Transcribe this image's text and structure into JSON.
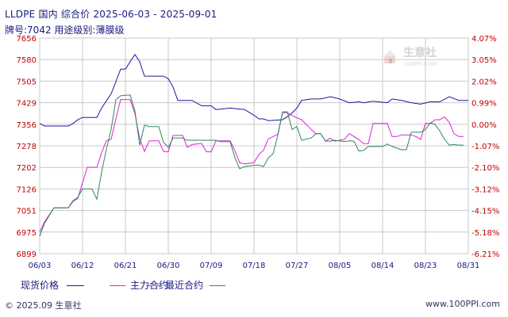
{
  "header": {
    "title": "LLDPE 国内 综合价 2025-06-03 - 2025-09-01",
    "subtitle": "牌号:7042 用途级别:薄膜级"
  },
  "watermark": {
    "brand": "生意社",
    "url": "100PPI.COM"
  },
  "legend": [
    {
      "label": "现货价格",
      "color": "#1a1aa0"
    },
    {
      "label": "主力合约",
      "color": "#e020d0"
    },
    {
      "label": "最近合约",
      "color": "#2a8a5a"
    }
  ],
  "footer": {
    "copyright": "© 2025.09 生意社",
    "url": "www.100PPI.com"
  },
  "colors": {
    "grid": "#c8c8c8",
    "axis_text_left": "#c00000",
    "axis_text_right": "#c00000",
    "axis_text_x": "#1a1a80",
    "baseline": "#c8c8c8"
  },
  "chart_data": {
    "type": "line",
    "x_labels": [
      "06/03",
      "06/12",
      "06/21",
      "06/30",
      "07/09",
      "07/18",
      "07/27",
      "08/05",
      "08/14",
      "08/23",
      "08/31"
    ],
    "y_ticks": [
      "7656",
      "7580",
      "7505",
      "7429",
      "7356",
      "7278",
      "7202",
      "7126",
      "7051",
      "6975",
      "6899"
    ],
    "y2_ticks": [
      "4.07%",
      "3.05%",
      "2.02%",
      "0.99%",
      "0.00%",
      "-1.07%",
      "-2.10%",
      "-3.12%",
      "-4.15%",
      "-5.18%",
      "-6.21%"
    ],
    "ylim": [
      6899,
      7656
    ],
    "xlim_days": [
      0,
      90
    ],
    "series": [
      {
        "name": "现货价格",
        "color": "#1a1aa0",
        "points": [
          [
            0,
            7356
          ],
          [
            1,
            7347
          ],
          [
            3,
            7347
          ],
          [
            6,
            7347
          ],
          [
            7,
            7356
          ],
          [
            8,
            7369
          ],
          [
            9,
            7377
          ],
          [
            12,
            7377
          ],
          [
            13,
            7410
          ],
          [
            15,
            7460
          ],
          [
            17,
            7547
          ],
          [
            18,
            7547
          ],
          [
            19,
            7573
          ],
          [
            20,
            7598
          ],
          [
            21,
            7573
          ],
          [
            22,
            7522
          ],
          [
            24,
            7522
          ],
          [
            26,
            7522
          ],
          [
            27,
            7513
          ],
          [
            28,
            7484
          ],
          [
            29,
            7437
          ],
          [
            32,
            7437
          ],
          [
            34,
            7418
          ],
          [
            36,
            7418
          ],
          [
            37,
            7405
          ],
          [
            40,
            7410
          ],
          [
            43,
            7405
          ],
          [
            45,
            7385
          ],
          [
            46,
            7372
          ],
          [
            47,
            7372
          ],
          [
            48,
            7366
          ],
          [
            51,
            7369
          ],
          [
            52,
            7380
          ],
          [
            53,
            7393
          ],
          [
            54,
            7410
          ],
          [
            55,
            7437
          ],
          [
            57,
            7442
          ],
          [
            59,
            7442
          ],
          [
            61,
            7450
          ],
          [
            63,
            7442
          ],
          [
            65,
            7429
          ],
          [
            67,
            7432
          ],
          [
            68,
            7429
          ],
          [
            70,
            7434
          ],
          [
            73,
            7429
          ],
          [
            74,
            7442
          ],
          [
            76,
            7437
          ],
          [
            78,
            7429
          ],
          [
            80,
            7424
          ],
          [
            82,
            7432
          ],
          [
            84,
            7432
          ],
          [
            86,
            7450
          ],
          [
            88,
            7437
          ],
          [
            90,
            7437
          ]
        ]
      },
      {
        "name": "主力合约",
        "color": "#e020d0",
        "points": [
          [
            0,
            6975
          ],
          [
            1,
            7010
          ],
          [
            3,
            7060
          ],
          [
            6,
            7060
          ],
          [
            7,
            7082
          ],
          [
            8,
            7093
          ],
          [
            9,
            7148
          ],
          [
            10,
            7202
          ],
          [
            12,
            7202
          ],
          [
            13,
            7253
          ],
          [
            14,
            7295
          ],
          [
            15,
            7300
          ],
          [
            16,
            7373
          ],
          [
            17,
            7440
          ],
          [
            18,
            7440
          ],
          [
            19,
            7440
          ],
          [
            20,
            7390
          ],
          [
            21,
            7303
          ],
          [
            22,
            7258
          ],
          [
            23,
            7295
          ],
          [
            25,
            7295
          ],
          [
            26,
            7258
          ],
          [
            27,
            7256
          ],
          [
            28,
            7314
          ],
          [
            30,
            7314
          ],
          [
            31,
            7272
          ],
          [
            32,
            7282
          ],
          [
            34,
            7286
          ],
          [
            35,
            7257
          ],
          [
            36,
            7256
          ],
          [
            37,
            7295
          ],
          [
            39,
            7295
          ],
          [
            40,
            7295
          ],
          [
            41,
            7260
          ],
          [
            42,
            7218
          ],
          [
            43,
            7214
          ],
          [
            45,
            7218
          ],
          [
            46,
            7247
          ],
          [
            47,
            7262
          ],
          [
            48,
            7302
          ],
          [
            50,
            7318
          ],
          [
            51,
            7394
          ],
          [
            52,
            7394
          ],
          [
            53,
            7384
          ],
          [
            54,
            7376
          ],
          [
            55,
            7369
          ],
          [
            57,
            7335
          ],
          [
            58,
            7320
          ],
          [
            59,
            7320
          ],
          [
            60,
            7294
          ],
          [
            61,
            7304
          ],
          [
            62,
            7294
          ],
          [
            64,
            7300
          ],
          [
            65,
            7320
          ],
          [
            67,
            7300
          ],
          [
            68,
            7285
          ],
          [
            69,
            7285
          ],
          [
            70,
            7356
          ],
          [
            73,
            7356
          ],
          [
            74,
            7310
          ],
          [
            75,
            7310
          ],
          [
            76,
            7316
          ],
          [
            78,
            7316
          ],
          [
            79,
            7310
          ],
          [
            80,
            7300
          ],
          [
            81,
            7356
          ],
          [
            82,
            7356
          ],
          [
            83,
            7369
          ],
          [
            84,
            7369
          ],
          [
            85,
            7379
          ],
          [
            86,
            7360
          ],
          [
            87,
            7320
          ],
          [
            88,
            7310
          ],
          [
            89,
            7310
          ]
        ]
      },
      {
        "name": "最近合约",
        "color": "#2a8a5a",
        "points": [
          [
            0,
            6960
          ],
          [
            1,
            7005
          ],
          [
            3,
            7060
          ],
          [
            6,
            7060
          ],
          [
            7,
            7085
          ],
          [
            8,
            7097
          ],
          [
            9,
            7126
          ],
          [
            11,
            7126
          ],
          [
            12,
            7090
          ],
          [
            13,
            7185
          ],
          [
            14,
            7265
          ],
          [
            15,
            7335
          ],
          [
            16,
            7440
          ],
          [
            17,
            7453
          ],
          [
            18,
            7455
          ],
          [
            19,
            7456
          ],
          [
            20,
            7400
          ],
          [
            21,
            7280
          ],
          [
            22,
            7350
          ],
          [
            23,
            7345
          ],
          [
            25,
            7345
          ],
          [
            26,
            7290
          ],
          [
            27,
            7272
          ],
          [
            28,
            7305
          ],
          [
            30,
            7305
          ],
          [
            31,
            7297
          ],
          [
            34,
            7297
          ],
          [
            37,
            7297
          ],
          [
            38,
            7292
          ],
          [
            40,
            7292
          ],
          [
            41,
            7235
          ],
          [
            42,
            7197
          ],
          [
            43,
            7205
          ],
          [
            45,
            7209
          ],
          [
            46,
            7210
          ],
          [
            47,
            7205
          ],
          [
            48,
            7235
          ],
          [
            49,
            7250
          ],
          [
            50,
            7314
          ],
          [
            51,
            7397
          ],
          [
            52,
            7397
          ],
          [
            53,
            7335
          ],
          [
            54,
            7345
          ],
          [
            55,
            7297
          ],
          [
            57,
            7305
          ],
          [
            58,
            7320
          ],
          [
            59,
            7320
          ],
          [
            60,
            7294
          ],
          [
            61,
            7294
          ],
          [
            62,
            7297
          ],
          [
            64,
            7292
          ],
          [
            65,
            7295
          ],
          [
            66,
            7294
          ],
          [
            67,
            7260
          ],
          [
            68,
            7261
          ],
          [
            69,
            7275
          ],
          [
            70,
            7275
          ],
          [
            72,
            7275
          ],
          [
            73,
            7284
          ],
          [
            74,
            7275
          ],
          [
            76,
            7264
          ],
          [
            77,
            7264
          ],
          [
            78,
            7325
          ],
          [
            80,
            7325
          ],
          [
            81,
            7335
          ],
          [
            82,
            7358
          ],
          [
            83,
            7353
          ],
          [
            84,
            7330
          ],
          [
            85,
            7300
          ],
          [
            86,
            7280
          ],
          [
            87,
            7282
          ],
          [
            88,
            7280
          ],
          [
            89,
            7280
          ]
        ]
      }
    ]
  }
}
